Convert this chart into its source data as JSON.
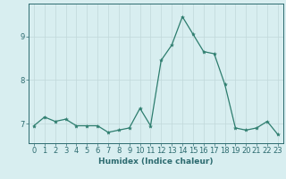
{
  "x": [
    0,
    1,
    2,
    3,
    4,
    5,
    6,
    7,
    8,
    9,
    10,
    11,
    12,
    13,
    14,
    15,
    16,
    17,
    18,
    19,
    20,
    21,
    22,
    23
  ],
  "y": [
    6.95,
    7.15,
    7.05,
    7.1,
    6.95,
    6.95,
    6.95,
    6.8,
    6.85,
    6.9,
    7.35,
    6.95,
    8.45,
    8.8,
    9.45,
    9.05,
    8.65,
    8.6,
    7.9,
    6.9,
    6.85,
    6.9,
    7.05,
    6.75
  ],
  "line_color": "#2d7d6e",
  "marker": "*",
  "marker_size": 3,
  "bg_color": "#d8eef0",
  "grid_color": "#c0d8da",
  "axis_color": "#2d6b70",
  "xlabel": "Humidex (Indice chaleur)",
  "xlim": [
    -0.5,
    23.5
  ],
  "ylim": [
    6.55,
    9.75
  ],
  "yticks": [
    7,
    8,
    9
  ],
  "xtick_labels": [
    "0",
    "1",
    "2",
    "3",
    "4",
    "5",
    "6",
    "7",
    "8",
    "9",
    "10",
    "11",
    "12",
    "13",
    "14",
    "15",
    "16",
    "17",
    "18",
    "19",
    "20",
    "21",
    "22",
    "23"
  ],
  "xlabel_fontsize": 6.5,
  "tick_fontsize": 6.0
}
